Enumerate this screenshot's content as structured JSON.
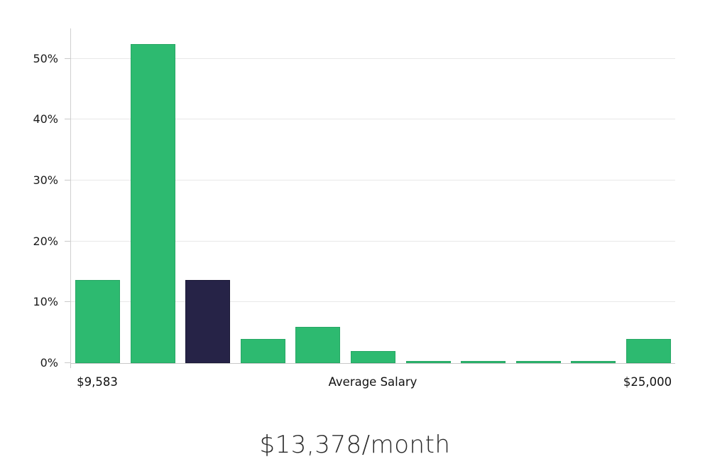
{
  "chart_data": {
    "type": "bar",
    "title": "$13,378/month",
    "values": [
      13.7,
      52.4,
      13.7,
      4.0,
      5.9,
      2.0,
      0.3,
      0.3,
      0.3,
      0.3,
      4.0
    ],
    "highlight_index": 2,
    "ylim": [
      0,
      55
    ],
    "yticks": [
      {
        "value": 0,
        "label": "0%"
      },
      {
        "value": 10,
        "label": "10%"
      },
      {
        "value": 20,
        "label": "20%"
      },
      {
        "value": 30,
        "label": "30%"
      },
      {
        "value": 40,
        "label": "40%"
      },
      {
        "value": 50,
        "label": "50%"
      }
    ],
    "x_labels": {
      "min": "$9,583",
      "center": "Average Salary",
      "max": "$25,000"
    },
    "colors": {
      "bar": "#2dba70",
      "bar_border": "#28a765",
      "highlight": "#262347",
      "highlight_border": "#1c1a38",
      "gridline": "#e8e8e8",
      "axis": "#c9c9c9",
      "tick_text": "#1a1a1a",
      "title_text": "#2b2b2b"
    },
    "grid": true,
    "legend": false
  }
}
